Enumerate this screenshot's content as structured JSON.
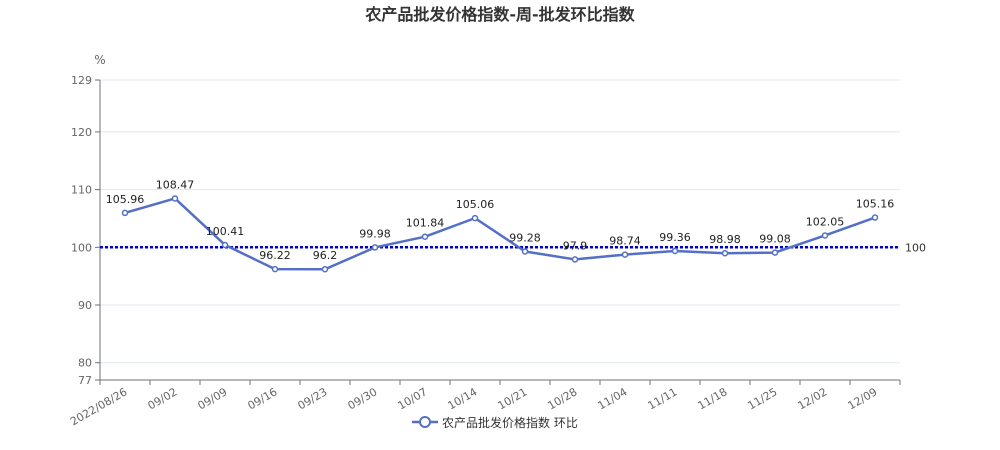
{
  "chart_data": {
    "type": "line",
    "title": "农产品批发价格指数-周-批发环比指数",
    "ylabel": "%",
    "ylim": [
      77,
      129
    ],
    "yticks": [
      77,
      80,
      90,
      100,
      110,
      120,
      129
    ],
    "categories": [
      "2022/08/26",
      "09/02",
      "09/09",
      "09/16",
      "09/23",
      "09/30",
      "10/07",
      "10/14",
      "10/21",
      "10/28",
      "11/04",
      "11/11",
      "11/18",
      "11/25",
      "12/02",
      "12/09"
    ],
    "series": [
      {
        "name": "农产品批发价格指数 环比",
        "values": [
          105.96,
          108.47,
          100.41,
          96.22,
          96.2,
          99.98,
          101.84,
          105.06,
          99.28,
          97.9,
          98.74,
          99.36,
          98.98,
          99.08,
          102.05,
          105.16
        ],
        "data_labels": [
          "105.96",
          "108.47",
          "100.41",
          "96.22",
          "96.2",
          "99.98",
          "101.84",
          "105.06",
          "99.28",
          "97.9",
          "98.74",
          "99.36",
          "98.98",
          "99.08",
          "102.05",
          "105.16"
        ],
        "color": "#5470c6"
      }
    ],
    "reference_line": {
      "value": 100,
      "label": "100",
      "color": "#0000cc",
      "style": "dotted"
    },
    "grid": true,
    "legend": "bottom-center"
  }
}
